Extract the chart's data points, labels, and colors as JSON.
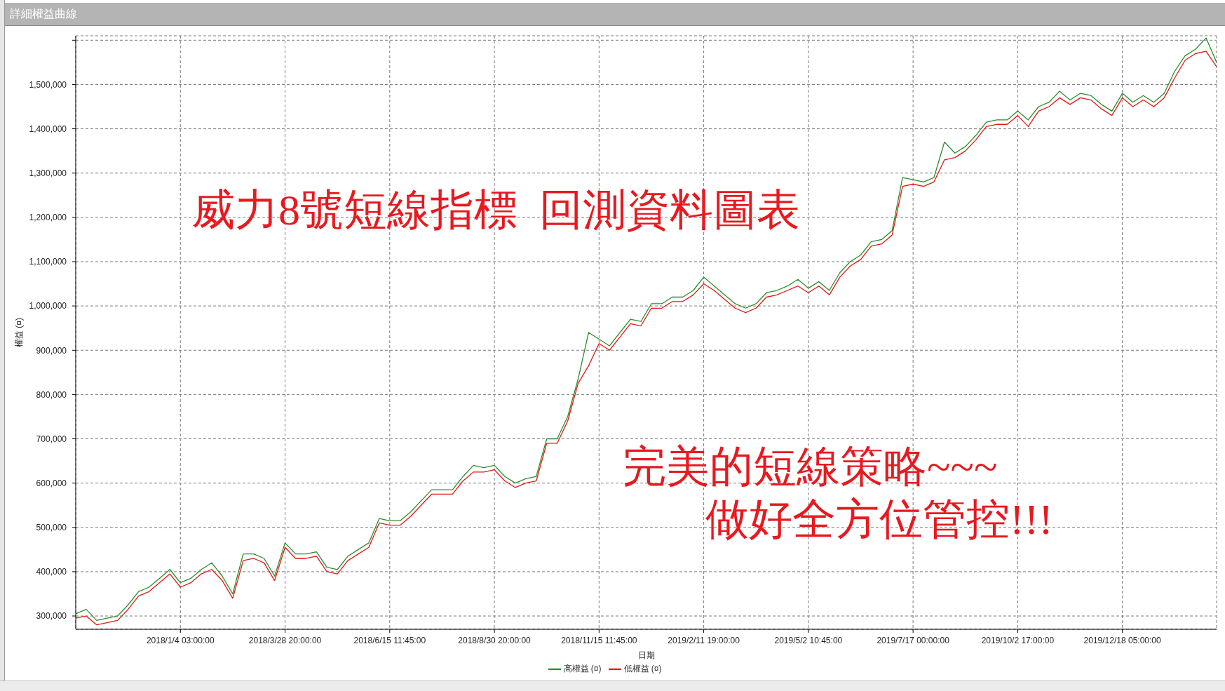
{
  "chart_data": {
    "type": "line",
    "title": "詳細權益曲線",
    "xlabel": "日期",
    "ylabel": "權益 (¤)",
    "annotations": [
      "威力8號短線指標  回測資料圖表",
      "完美的短線策略~~~",
      "做好全方位管控!!!"
    ],
    "categories": [
      null,
      null,
      null,
      null,
      null,
      null,
      null,
      null,
      null,
      null,
      "2018/1/4 03:00:00",
      null,
      null,
      null,
      null,
      null,
      null,
      null,
      null,
      null,
      "2018/3/28 20:00:00",
      null,
      null,
      null,
      null,
      null,
      null,
      null,
      null,
      null,
      "2018/6/15 11:45:00",
      null,
      null,
      null,
      null,
      null,
      null,
      null,
      null,
      null,
      "2018/8/30 20:00:00",
      null,
      null,
      null,
      null,
      null,
      null,
      null,
      null,
      null,
      "2018/11/15 11:45:00",
      null,
      null,
      null,
      null,
      null,
      null,
      null,
      null,
      null,
      "2019/2/11 19:00:00",
      null,
      null,
      null,
      null,
      null,
      null,
      null,
      null,
      null,
      "2019/5/2 10:45:00",
      null,
      null,
      null,
      null,
      null,
      null,
      null,
      null,
      null,
      "2019/7/17 00:00:00",
      null,
      null,
      null,
      null,
      null,
      null,
      null,
      null,
      null,
      "2019/10/2 17:00:00",
      null,
      null,
      null,
      null,
      null,
      null,
      null,
      null,
      null,
      "2019/12/18 05:00:00",
      null,
      null,
      null,
      null,
      null,
      null,
      null,
      null,
      null
    ],
    "series": [
      {
        "name": "高權益 (¤)",
        "color": "#2e8b2e",
        "values": [
          305000,
          315000,
          290000,
          295000,
          300000,
          325000,
          355000,
          365000,
          385000,
          405000,
          375000,
          385000,
          405000,
          420000,
          390000,
          350000,
          440000,
          440000,
          430000,
          390000,
          465000,
          440000,
          440000,
          445000,
          410000,
          405000,
          435000,
          450000,
          465000,
          520000,
          515000,
          515000,
          535000,
          560000,
          585000,
          585000,
          585000,
          615000,
          640000,
          635000,
          640000,
          615000,
          600000,
          610000,
          615000,
          700000,
          700000,
          750000,
          835000,
          940000,
          925000,
          910000,
          940000,
          970000,
          965000,
          1005000,
          1005000,
          1020000,
          1020000,
          1035000,
          1065000,
          1045000,
          1025000,
          1005000,
          995000,
          1005000,
          1030000,
          1035000,
          1045000,
          1060000,
          1040000,
          1055000,
          1035000,
          1075000,
          1100000,
          1115000,
          1145000,
          1150000,
          1170000,
          1290000,
          1285000,
          1280000,
          1290000,
          1370000,
          1345000,
          1360000,
          1385000,
          1415000,
          1420000,
          1420000,
          1440000,
          1420000,
          1450000,
          1460000,
          1485000,
          1465000,
          1480000,
          1475000,
          1455000,
          1440000,
          1480000,
          1460000,
          1475000,
          1460000,
          1480000,
          1530000,
          1565000,
          1580000,
          1605000,
          1550000
        ]
      },
      {
        "name": "低權益 (¤)",
        "color": "#e01a12",
        "values": [
          295000,
          300000,
          280000,
          285000,
          290000,
          315000,
          345000,
          355000,
          375000,
          395000,
          365000,
          375000,
          395000,
          405000,
          380000,
          340000,
          425000,
          430000,
          420000,
          380000,
          455000,
          430000,
          430000,
          435000,
          400000,
          395000,
          425000,
          440000,
          455000,
          510000,
          505000,
          505000,
          525000,
          550000,
          575000,
          575000,
          575000,
          605000,
          625000,
          625000,
          630000,
          605000,
          590000,
          600000,
          605000,
          690000,
          690000,
          740000,
          825000,
          865000,
          915000,
          900000,
          930000,
          960000,
          955000,
          995000,
          995000,
          1010000,
          1010000,
          1025000,
          1050000,
          1035000,
          1015000,
          995000,
          985000,
          995000,
          1020000,
          1025000,
          1035000,
          1045000,
          1030000,
          1045000,
          1025000,
          1065000,
          1090000,
          1105000,
          1135000,
          1140000,
          1160000,
          1270000,
          1275000,
          1270000,
          1280000,
          1330000,
          1335000,
          1350000,
          1375000,
          1405000,
          1410000,
          1410000,
          1430000,
          1405000,
          1440000,
          1450000,
          1470000,
          1455000,
          1470000,
          1465000,
          1445000,
          1430000,
          1470000,
          1450000,
          1465000,
          1450000,
          1470000,
          1515000,
          1555000,
          1570000,
          1575000,
          1540000
        ]
      }
    ],
    "ylim": [
      270000,
      1610000
    ],
    "yticks": [
      {
        "value": 300000,
        "label": "300,000"
      },
      {
        "value": 400000,
        "label": "400,000"
      },
      {
        "value": 500000,
        "label": "500,000"
      },
      {
        "value": 600000,
        "label": "600,000"
      },
      {
        "value": 700000,
        "label": "700,000"
      },
      {
        "value": 800000,
        "label": "800,000"
      },
      {
        "value": 900000,
        "label": "900,000"
      },
      {
        "value": 1000000,
        "label": "1,000,000"
      },
      {
        "value": 1100000,
        "label": "1,100,000"
      },
      {
        "value": 1200000,
        "label": "1,200,000"
      },
      {
        "value": 1300000,
        "label": "1,300,000"
      },
      {
        "value": 1400000,
        "label": "1,400,000"
      },
      {
        "value": 1500000,
        "label": "1,500,000"
      },
      {
        "value": 1600000,
        "label": null
      }
    ],
    "grid": true,
    "legend": "bottom"
  }
}
